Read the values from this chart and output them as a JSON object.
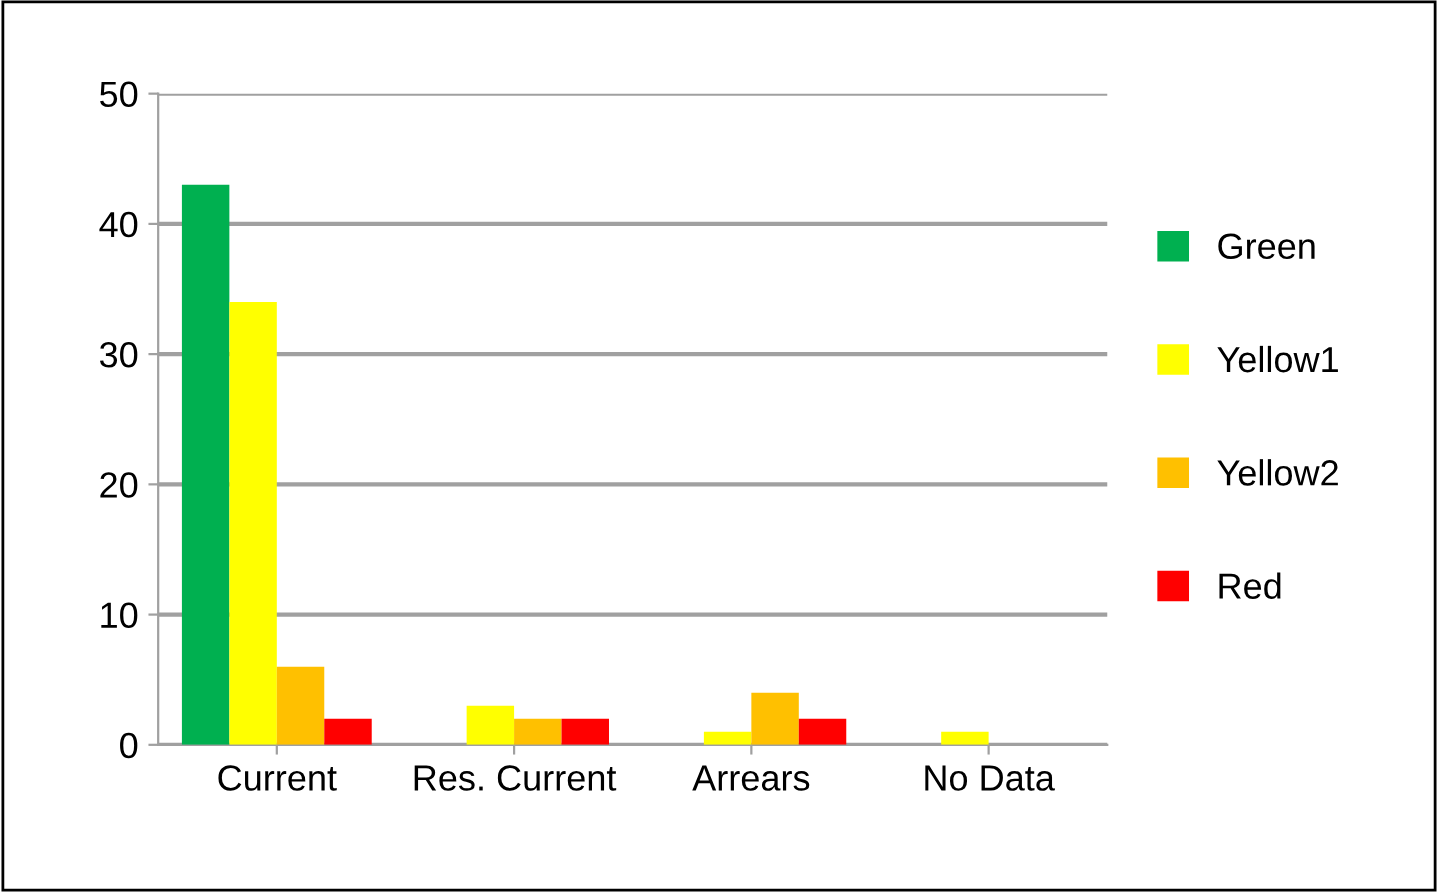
{
  "chart_data": {
    "type": "bar",
    "categories": [
      "Current",
      "Res. Current",
      "Arrears",
      "No Data"
    ],
    "series": [
      {
        "name": "Green",
        "color": "#00b050",
        "values": [
          43,
          0,
          0,
          0
        ]
      },
      {
        "name": "Yellow1",
        "color": "#ffff00",
        "values": [
          34,
          3,
          1,
          1
        ]
      },
      {
        "name": "Yellow2",
        "color": "#ffc000",
        "values": [
          6,
          2,
          4,
          0
        ]
      },
      {
        "name": "Red",
        "color": "#ff0000",
        "values": [
          2,
          2,
          2,
          0
        ]
      }
    ],
    "ylim": [
      0,
      50
    ],
    "yticks": [
      0,
      10,
      20,
      30,
      40,
      50
    ],
    "grid": "y",
    "legend": "right"
  }
}
